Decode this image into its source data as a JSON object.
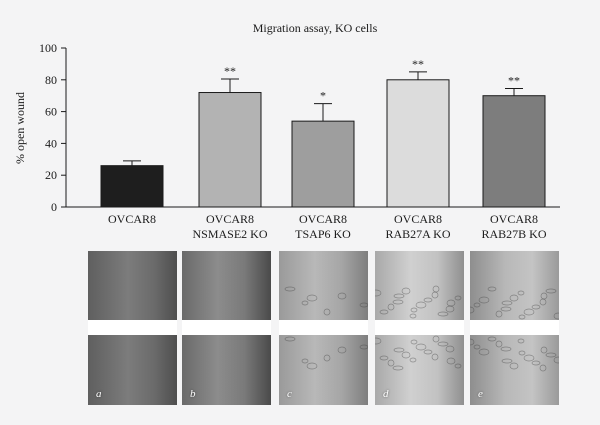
{
  "chart_data": {
    "type": "bar",
    "title": "Migration assay, KO cells",
    "ylabel": "% open wound",
    "ylim": [
      0,
      100
    ],
    "yticks": [
      0,
      20,
      40,
      60,
      80,
      100
    ],
    "categories": [
      [
        "OVCAR8"
      ],
      [
        "OVCAR8",
        "NSMASE2 KO"
      ],
      [
        "OVCAR8",
        "TSAP6 KO"
      ],
      [
        "OVCAR8",
        "RAB27A KO"
      ],
      [
        "OVCAR8",
        "RAB27B KO"
      ]
    ],
    "values": [
      26,
      72,
      54,
      80,
      70
    ],
    "errors": [
      3,
      8.5,
      11,
      5,
      4.5
    ],
    "significance": [
      "",
      "**",
      "*",
      "**",
      "**"
    ],
    "colors": [
      "#1e1e1e",
      "#b3b3b3",
      "#9e9e9e",
      "#dcdcdc",
      "#7d7d7d"
    ]
  },
  "micrographs": {
    "labels": [
      "a",
      "b",
      "c",
      "d",
      "e"
    ]
  }
}
